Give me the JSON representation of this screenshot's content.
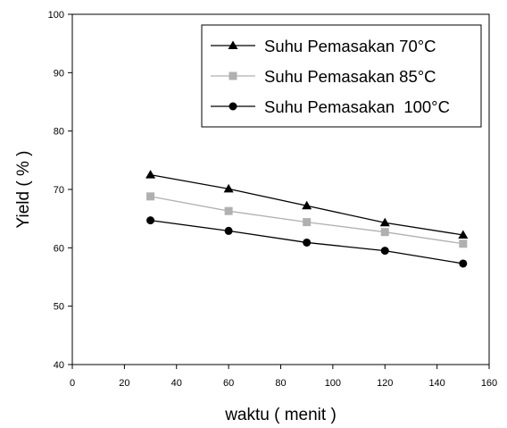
{
  "chart_data": {
    "type": "line",
    "title": "",
    "xlabel": "waktu ( menit )",
    "ylabel": "Yield ( % )",
    "xlim": [
      0,
      160
    ],
    "ylim": [
      40,
      100
    ],
    "xticks": [
      0,
      20,
      40,
      60,
      80,
      100,
      120,
      140,
      160
    ],
    "yticks": [
      40,
      50,
      60,
      70,
      80,
      90,
      100
    ],
    "grid": false,
    "legend_position": "top-right",
    "x": [
      30,
      60,
      90,
      120,
      150
    ],
    "series": [
      {
        "name": "Suhu Pemasakan 70°C",
        "marker": "triangle",
        "color": "#000000",
        "values": [
          72.5,
          70.1,
          67.2,
          64.3,
          62.2
        ]
      },
      {
        "name": "Suhu Pemasakan 85°C",
        "marker": "square",
        "color": "#b0b0b0",
        "values": [
          68.8,
          66.3,
          64.4,
          62.7,
          60.7
        ]
      },
      {
        "name": "Suhu Pemasakan  100°C",
        "marker": "circle",
        "color": "#000000",
        "values": [
          64.7,
          62.9,
          60.9,
          59.5,
          57.3
        ]
      }
    ]
  }
}
